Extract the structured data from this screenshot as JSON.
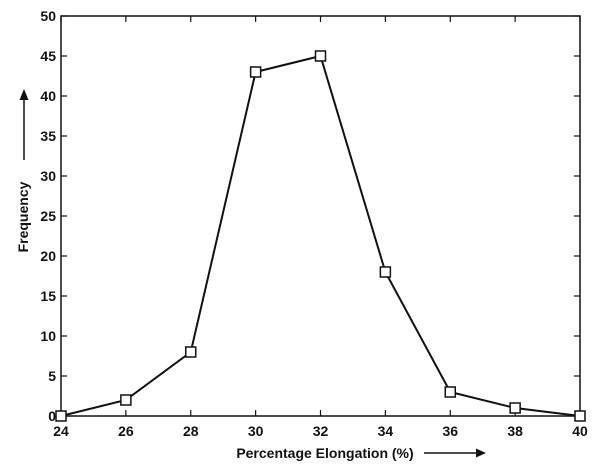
{
  "chart_data": {
    "type": "line",
    "title": "",
    "xlabel": "Percentage Elongation (%)",
    "ylabel": "Frequency",
    "xlim": [
      24,
      40
    ],
    "ylim": [
      0,
      50
    ],
    "xticks": [
      24,
      26,
      28,
      30,
      32,
      34,
      36,
      38,
      40
    ],
    "yticks": [
      0,
      5,
      10,
      15,
      20,
      25,
      30,
      35,
      40,
      45,
      50
    ],
    "grid": false,
    "legend": "none",
    "marker": "square",
    "line_color": "#111111",
    "series": [
      {
        "x": [
          24,
          26,
          28,
          30,
          32,
          34,
          36,
          38,
          40
        ],
        "values": [
          0,
          2,
          8,
          43,
          45,
          18,
          3,
          1,
          0
        ]
      }
    ]
  }
}
